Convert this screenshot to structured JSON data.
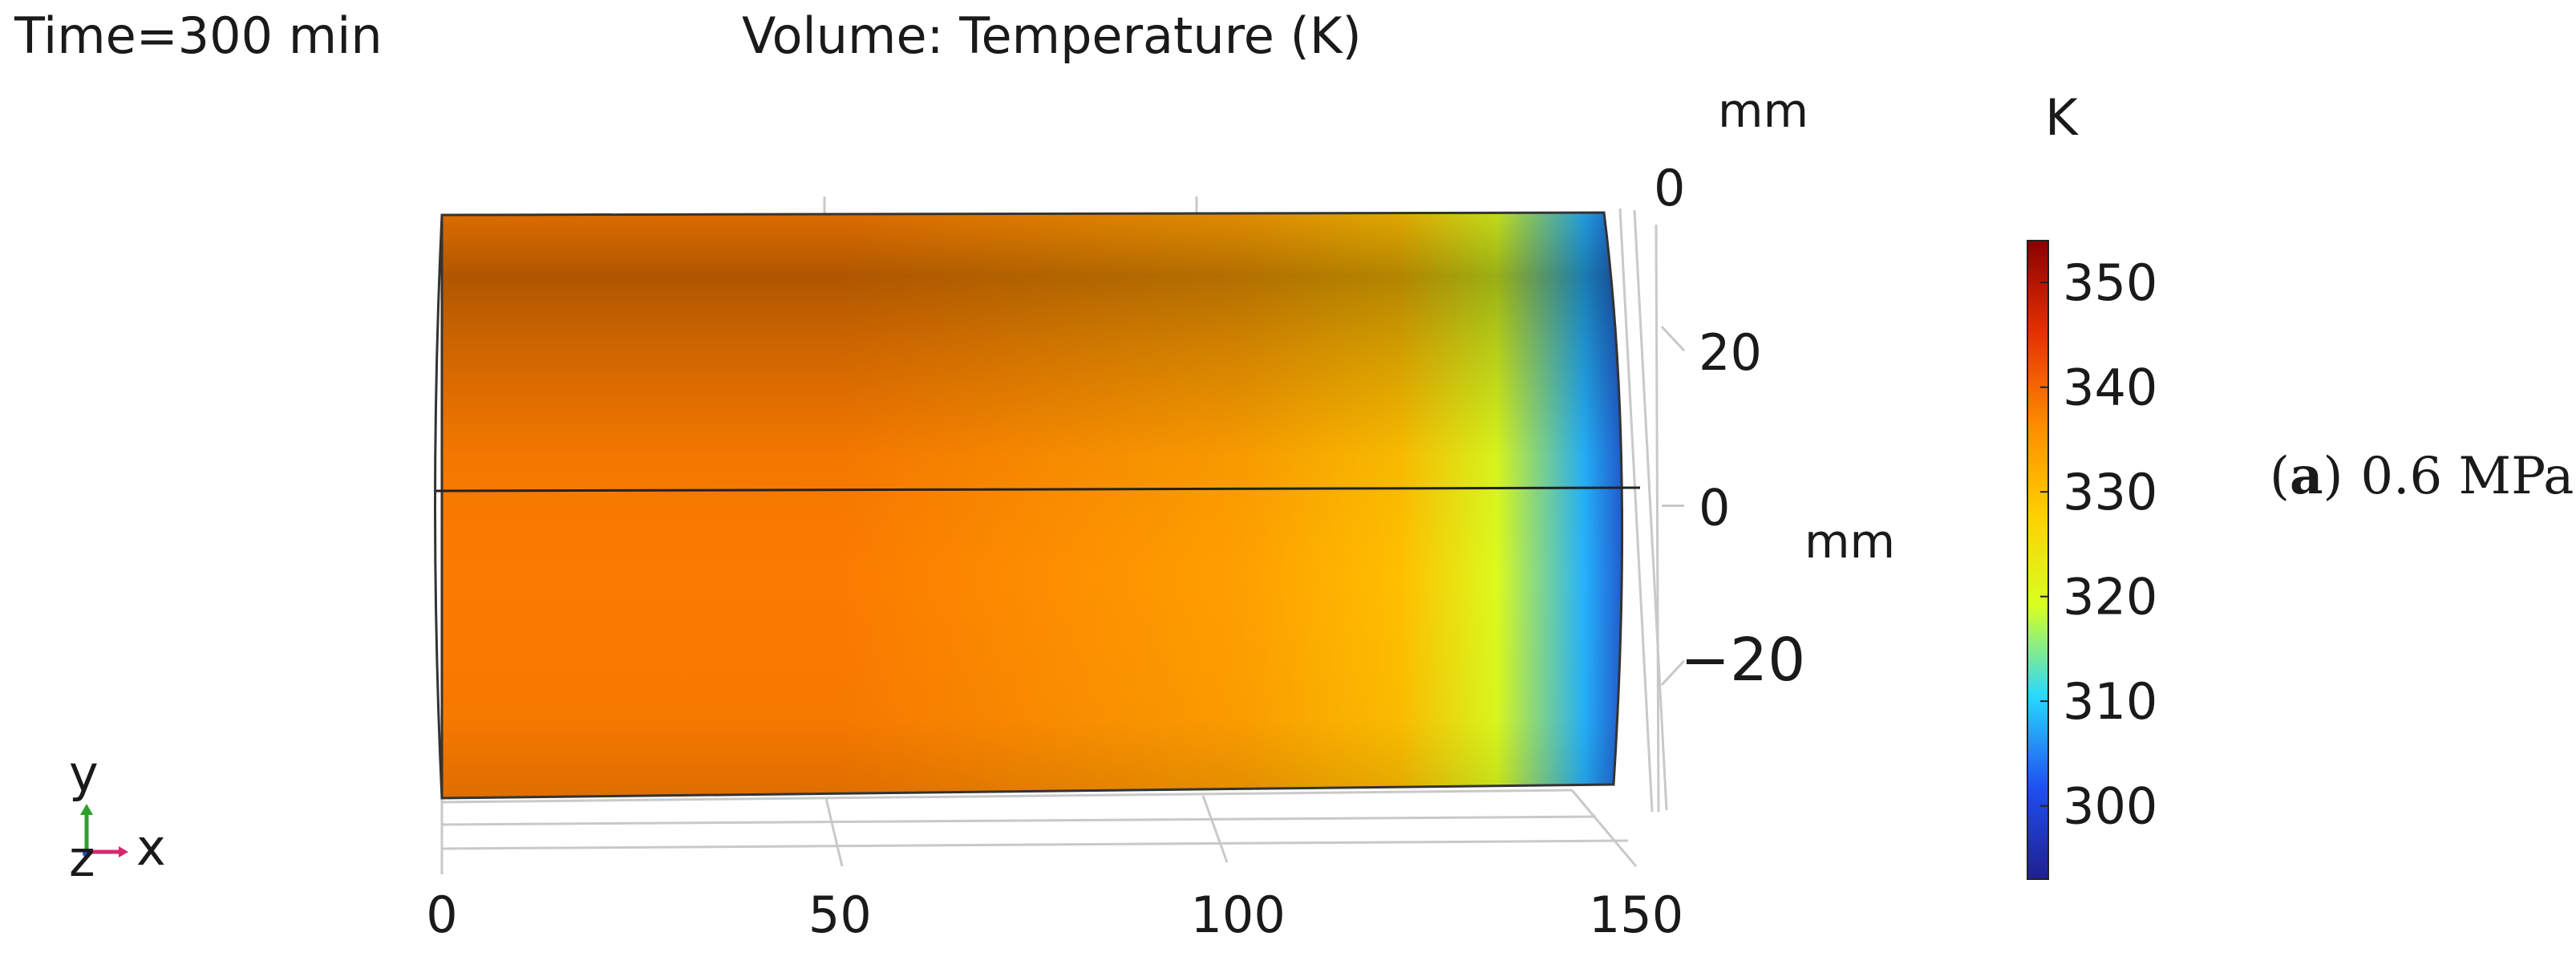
{
  "header": {
    "time_label": "Time=300 min",
    "plot_title": "Volume: Temperature (K)"
  },
  "panel_label": {
    "letter": "a",
    "paren_open": "(",
    "paren_close": ")",
    "pressure": "0.6 MPa"
  },
  "axis_triad": {
    "y": "y",
    "z": "z",
    "x": "x"
  },
  "chart_data": {
    "type": "heatmap",
    "title": "Volume: Temperature (K)",
    "subtitle": "Time=300 min",
    "x_axis": {
      "unit": "",
      "ticks": [
        0,
        50,
        100,
        150
      ],
      "tick_labels": [
        "0",
        "50",
        "100",
        "150"
      ],
      "range": [
        0,
        150
      ]
    },
    "y_axis": {
      "unit": "mm",
      "ticks": [
        20,
        0,
        -20
      ],
      "tick_labels": [
        "20",
        "0",
        "−20"
      ],
      "range": [
        -37.5,
        37.5
      ]
    },
    "z_axis": {
      "unit": "mm",
      "ticks": [
        0
      ],
      "tick_labels": [
        "0"
      ]
    },
    "colorbar": {
      "unit": "K",
      "range": [
        293,
        354
      ],
      "ticks": [
        350,
        340,
        330,
        320,
        310,
        300
      ],
      "tick_labels": [
        "350",
        "340",
        "330",
        "320",
        "310",
        "300"
      ],
      "colormap": [
        "#1f1f8f",
        "#1f4ff0",
        "#28d8ff",
        "#d8ff20",
        "#ffd000",
        "#ff8a00",
        "#e43000",
        "#8a0000"
      ]
    },
    "temperature_profile_along_x": {
      "x_mm": [
        0,
        50,
        100,
        120,
        132,
        143,
        150
      ],
      "temperature_K": [
        338,
        338,
        334,
        330,
        320,
        308,
        297
      ]
    }
  }
}
